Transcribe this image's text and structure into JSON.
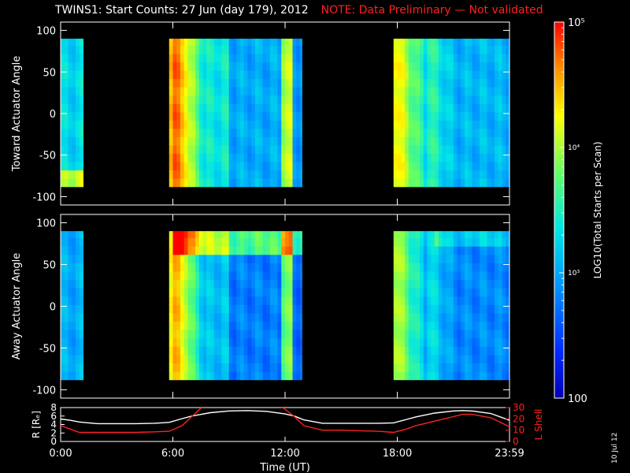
{
  "title": "TWINS1: Start Counts: 27 Jun (day 179), 2012",
  "note": "NOTE: Data Preliminary — Not validated",
  "date_stamp": "10 Jul 12",
  "colors": {
    "background": "#000000",
    "axes": "#ffffff",
    "note": "#ff2020",
    "l_shell": "#ff2020",
    "r_line": "#ffffff"
  },
  "chart_data": [
    {
      "type": "heatmap",
      "name": "toward-panel",
      "ylabel": "Toward Actuator Angle",
      "xlim": [
        0,
        24
      ],
      "ylim": [
        -110,
        110
      ],
      "ytick_labels": [
        "-100",
        "-50",
        "0",
        "50",
        "100"
      ],
      "ytick_values": [
        -100,
        -50,
        0,
        50,
        100
      ],
      "data_angle_range": [
        -88,
        90
      ],
      "coverage_hours": [
        [
          0,
          1.2
        ],
        [
          5.8,
          12.9
        ],
        [
          17.8,
          24
        ]
      ]
    },
    {
      "type": "heatmap",
      "name": "away-panel",
      "ylabel": "Away Actuator Angle",
      "xlim": [
        0,
        24
      ],
      "ylim": [
        -110,
        110
      ],
      "ytick_labels": [
        "-100",
        "-50",
        "0",
        "50",
        "100"
      ],
      "ytick_values": [
        -100,
        -50,
        0,
        50,
        100
      ],
      "data_angle_range": [
        -88,
        90
      ],
      "coverage_hours": [
        [
          0,
          1.2
        ],
        [
          5.8,
          12.9
        ],
        [
          17.8,
          24
        ]
      ]
    },
    {
      "type": "line",
      "name": "orbit-panel",
      "xlabel": "Time (UT)",
      "ylabel_left": "R [Rₑ]",
      "ylabel_right": "L Shell",
      "xtick_labels": [
        "0:00",
        "6:00",
        "12:00",
        "18:00",
        "23:59"
      ],
      "xtick_values": [
        0,
        6,
        12,
        18,
        24
      ],
      "ylim_left": [
        0,
        8
      ],
      "ytick_left_labels": [
        "0",
        "2",
        "4",
        "6",
        "8"
      ],
      "ylim_right": [
        0,
        30
      ],
      "ytick_right_labels": [
        "0",
        "10",
        "20",
        "30"
      ],
      "series": [
        {
          "name": "R",
          "axis": "left",
          "x": [
            0,
            0.5,
            1,
            1.5,
            2,
            3,
            4,
            5,
            5.8,
            6.5,
            7,
            8,
            9,
            10,
            11,
            12,
            12.5,
            13,
            14,
            15,
            16,
            17,
            17.8,
            18.5,
            19,
            20,
            21,
            21.5,
            22,
            23,
            24
          ],
          "values": [
            5.3,
            5.0,
            4.6,
            4.4,
            4.2,
            4.2,
            4.2,
            4.3,
            4.5,
            5.4,
            6.0,
            6.8,
            7.2,
            7.3,
            7.1,
            6.5,
            6.0,
            5.1,
            4.3,
            4.3,
            4.3,
            4.3,
            4.4,
            5.2,
            5.8,
            6.7,
            7.2,
            7.3,
            7.2,
            6.6,
            5.0
          ]
        },
        {
          "name": "L Shell",
          "axis": "right",
          "x": [
            0,
            0.5,
            1,
            2,
            3,
            4,
            5,
            5.8,
            6.5,
            7,
            7.6,
            11.8,
            12.5,
            13,
            14,
            15,
            16,
            17,
            17.8,
            18.5,
            19,
            20,
            21,
            21.5,
            22,
            23,
            24
          ],
          "values": [
            14,
            11,
            8,
            8,
            8,
            8,
            8.5,
            9,
            14,
            22,
            31,
            31,
            22,
            14,
            10,
            10,
            9.5,
            9,
            8,
            11,
            14,
            18,
            22,
            24,
            24,
            21,
            13
          ]
        }
      ]
    },
    {
      "type": "heatmap",
      "name": "colorbar",
      "label": "LOG10(Total Starts per Scan)",
      "scale": "log",
      "range": [
        100,
        100000
      ],
      "tick_labels": [
        "100",
        "10³",
        "10⁴",
        "10⁵"
      ],
      "tick_values": [
        100,
        1000,
        10000,
        100000
      ]
    }
  ]
}
